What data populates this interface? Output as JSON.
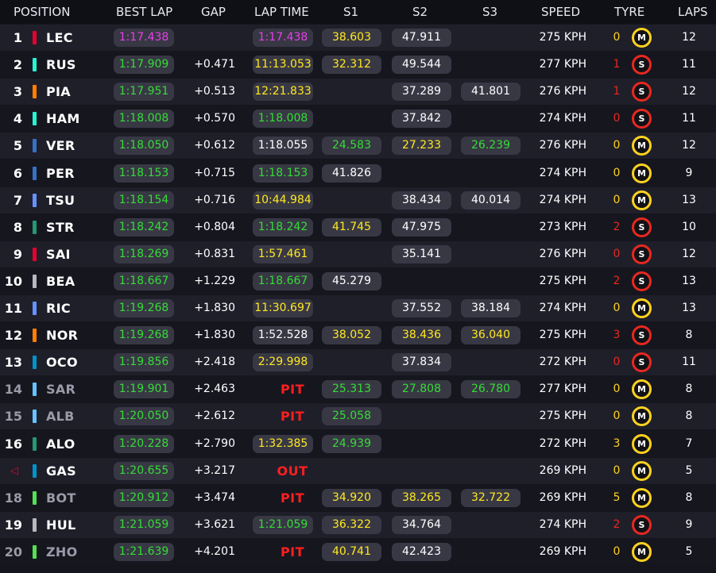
{
  "headers": {
    "position": "POSITION",
    "best_lap": "BEST LAP",
    "gap": "GAP",
    "lap_time": "LAP TIME",
    "s1": "S1",
    "s2": "S2",
    "s3": "S3",
    "speed": "SPEED",
    "tyre": "TYRE",
    "laps": "LAPS"
  },
  "colors": {
    "purple": "#e83fe8",
    "green": "#35dc35",
    "yellow": "#ffe81f",
    "white": "#ffffff",
    "gray": "#9a9aa8",
    "pit_red": "#ff1f1f",
    "tyre_soft": "#e8281f",
    "tyre_medium": "#ffd21e"
  },
  "tyre_labels": {
    "soft": "S",
    "medium": "M"
  },
  "rows": [
    {
      "pos": "1",
      "driver": "LEC",
      "team_color": "#e8002d",
      "best": "1:17.438",
      "best_color": "purple",
      "gap": "",
      "lap": "1:17.438",
      "lap_color": "purple",
      "s1": "38.603",
      "s1_color": "yellow",
      "s2": "47.911",
      "s2_color": "white",
      "s3": "",
      "s3_color": "",
      "speed": "275 KPH",
      "tyre_count": "0",
      "tyre": "medium",
      "laps": "12"
    },
    {
      "pos": "2",
      "driver": "RUS",
      "team_color": "#27f4d2",
      "best": "1:17.909",
      "best_color": "green",
      "gap": "+0.471",
      "lap": "11:13.053",
      "lap_color": "yellow",
      "s1": "32.312",
      "s1_color": "yellow",
      "s2": "49.544",
      "s2_color": "white",
      "s3": "",
      "s3_color": "",
      "speed": "277 KPH",
      "tyre_count": "1",
      "tyre": "soft",
      "laps": "11"
    },
    {
      "pos": "3",
      "driver": "PIA",
      "team_color": "#ff8000",
      "best": "1:17.951",
      "best_color": "green",
      "gap": "+0.513",
      "lap": "12:21.833",
      "lap_color": "yellow",
      "s1": "",
      "s1_color": "",
      "s2": "37.289",
      "s2_color": "white",
      "s3": "41.801",
      "s3_color": "white",
      "speed": "276 KPH",
      "tyre_count": "1",
      "tyre": "soft",
      "laps": "12"
    },
    {
      "pos": "4",
      "driver": "HAM",
      "team_color": "#27f4d2",
      "best": "1:18.008",
      "best_color": "green",
      "gap": "+0.570",
      "lap": "1:18.008",
      "lap_color": "green",
      "s1": "",
      "s1_color": "",
      "s2": "37.842",
      "s2_color": "white",
      "s3": "",
      "s3_color": "",
      "speed": "274 KPH",
      "tyre_count": "0",
      "tyre": "soft",
      "laps": "11"
    },
    {
      "pos": "5",
      "driver": "VER",
      "team_color": "#3671c6",
      "best": "1:18.050",
      "best_color": "green",
      "gap": "+0.612",
      "lap": "1:18.055",
      "lap_color": "white",
      "s1": "24.583",
      "s1_color": "green",
      "s2": "27.233",
      "s2_color": "yellow",
      "s3": "26.239",
      "s3_color": "green",
      "speed": "276 KPH",
      "tyre_count": "0",
      "tyre": "medium",
      "laps": "12"
    },
    {
      "pos": "6",
      "driver": "PER",
      "team_color": "#3671c6",
      "best": "1:18.153",
      "best_color": "green",
      "gap": "+0.715",
      "lap": "1:18.153",
      "lap_color": "green",
      "s1": "41.826",
      "s1_color": "white",
      "s2": "",
      "s2_color": "",
      "s3": "",
      "s3_color": "",
      "speed": "274 KPH",
      "tyre_count": "0",
      "tyre": "medium",
      "laps": "9"
    },
    {
      "pos": "7",
      "driver": "TSU",
      "team_color": "#6692ff",
      "best": "1:18.154",
      "best_color": "green",
      "gap": "+0.716",
      "lap": "10:44.984",
      "lap_color": "yellow",
      "s1": "",
      "s1_color": "",
      "s2": "38.434",
      "s2_color": "white",
      "s3": "40.014",
      "s3_color": "white",
      "speed": "274 KPH",
      "tyre_count": "0",
      "tyre": "medium",
      "laps": "13"
    },
    {
      "pos": "8",
      "driver": "STR",
      "team_color": "#229971",
      "best": "1:18.242",
      "best_color": "green",
      "gap": "+0.804",
      "lap": "1:18.242",
      "lap_color": "green",
      "s1": "41.745",
      "s1_color": "yellow",
      "s2": "47.975",
      "s2_color": "white",
      "s3": "",
      "s3_color": "",
      "speed": "273 KPH",
      "tyre_count": "2",
      "tyre": "soft",
      "laps": "10"
    },
    {
      "pos": "9",
      "driver": "SAI",
      "team_color": "#e8002d",
      "best": "1:18.269",
      "best_color": "green",
      "gap": "+0.831",
      "lap": "1:57.461",
      "lap_color": "yellow",
      "s1": "",
      "s1_color": "",
      "s2": "35.141",
      "s2_color": "white",
      "s3": "",
      "s3_color": "",
      "speed": "276 KPH",
      "tyre_count": "0",
      "tyre": "soft",
      "laps": "12"
    },
    {
      "pos": "10",
      "driver": "BEA",
      "team_color": "#b6babd",
      "best": "1:18.667",
      "best_color": "green",
      "gap": "+1.229",
      "lap": "1:18.667",
      "lap_color": "green",
      "s1": "45.279",
      "s1_color": "white",
      "s2": "",
      "s2_color": "",
      "s3": "",
      "s3_color": "",
      "speed": "275 KPH",
      "tyre_count": "2",
      "tyre": "soft",
      "laps": "13"
    },
    {
      "pos": "11",
      "driver": "RIC",
      "team_color": "#6692ff",
      "best": "1:19.268",
      "best_color": "green",
      "gap": "+1.830",
      "lap": "11:30.697",
      "lap_color": "yellow",
      "s1": "",
      "s1_color": "",
      "s2": "37.552",
      "s2_color": "white",
      "s3": "38.184",
      "s3_color": "white",
      "speed": "274 KPH",
      "tyre_count": "0",
      "tyre": "medium",
      "laps": "13"
    },
    {
      "pos": "12",
      "driver": "NOR",
      "team_color": "#ff8000",
      "best": "1:19.268",
      "best_color": "green",
      "gap": "+1.830",
      "lap": "1:52.528",
      "lap_color": "white",
      "s1": "38.052",
      "s1_color": "yellow",
      "s2": "38.436",
      "s2_color": "yellow",
      "s3": "36.040",
      "s3_color": "yellow",
      "speed": "275 KPH",
      "tyre_count": "3",
      "tyre": "soft",
      "laps": "8"
    },
    {
      "pos": "13",
      "driver": "OCO",
      "team_color": "#0093cc",
      "best": "1:19.856",
      "best_color": "green",
      "gap": "+2.418",
      "lap": "2:29.998",
      "lap_color": "yellow",
      "s1": "",
      "s1_color": "",
      "s2": "37.834",
      "s2_color": "white",
      "s3": "",
      "s3_color": "",
      "speed": "272 KPH",
      "tyre_count": "0",
      "tyre": "soft",
      "laps": "11"
    },
    {
      "pos": "14",
      "driver": "SAR",
      "team_color": "#64c4ff",
      "best": "1:19.901",
      "best_color": "green",
      "gap": "+2.463",
      "status": "PIT",
      "s1": "25.313",
      "s1_color": "green",
      "s2": "27.808",
      "s2_color": "green",
      "s3": "26.780",
      "s3_color": "green",
      "speed": "277 KPH",
      "tyre_count": "0",
      "tyre": "medium",
      "laps": "8",
      "dim": true
    },
    {
      "pos": "15",
      "driver": "ALB",
      "team_color": "#64c4ff",
      "best": "1:20.050",
      "best_color": "green",
      "gap": "+2.612",
      "status": "PIT",
      "s1": "25.058",
      "s1_color": "green",
      "s2": "",
      "s2_color": "",
      "s3": "",
      "s3_color": "",
      "speed": "275 KPH",
      "tyre_count": "0",
      "tyre": "medium",
      "laps": "8",
      "dim": true
    },
    {
      "pos": "16",
      "driver": "ALO",
      "team_color": "#229971",
      "best": "1:20.228",
      "best_color": "green",
      "gap": "+2.790",
      "lap": "1:32.385",
      "lap_color": "yellow",
      "s1": "24.939",
      "s1_color": "green",
      "s2": "",
      "s2_color": "",
      "s3": "",
      "s3_color": "",
      "speed": "272 KPH",
      "tyre_count": "3",
      "tyre": "medium",
      "laps": "7"
    },
    {
      "pos": "",
      "arrow": "◁",
      "driver": "GAS",
      "team_color": "#0093cc",
      "best": "1:20.655",
      "best_color": "green",
      "gap": "+3.217",
      "status": "OUT",
      "s1": "",
      "s1_color": "",
      "s2": "",
      "s2_color": "",
      "s3": "",
      "s3_color": "",
      "speed": "269 KPH",
      "tyre_count": "0",
      "tyre": "medium",
      "laps": "5"
    },
    {
      "pos": "18",
      "driver": "BOT",
      "team_color": "#52e252",
      "best": "1:20.912",
      "best_color": "green",
      "gap": "+3.474",
      "status": "PIT",
      "s1": "34.920",
      "s1_color": "yellow",
      "s2": "38.265",
      "s2_color": "yellow",
      "s3": "32.722",
      "s3_color": "yellow",
      "speed": "269 KPH",
      "tyre_count": "5",
      "tyre": "medium",
      "laps": "8",
      "dim": true
    },
    {
      "pos": "19",
      "driver": "HUL",
      "team_color": "#b6babd",
      "best": "1:21.059",
      "best_color": "green",
      "gap": "+3.621",
      "lap": "1:21.059",
      "lap_color": "green",
      "s1": "36.322",
      "s1_color": "yellow",
      "s2": "34.764",
      "s2_color": "white",
      "s3": "",
      "s3_color": "",
      "speed": "274 KPH",
      "tyre_count": "2",
      "tyre": "soft",
      "laps": "9"
    },
    {
      "pos": "20",
      "driver": "ZHO",
      "team_color": "#52e252",
      "best": "1:21.639",
      "best_color": "green",
      "gap": "+4.201",
      "status": "PIT",
      "s1": "40.741",
      "s1_color": "yellow",
      "s2": "42.423",
      "s2_color": "white",
      "s3": "",
      "s3_color": "",
      "speed": "269 KPH",
      "tyre_count": "0",
      "tyre": "medium",
      "laps": "5",
      "dim": true
    }
  ]
}
